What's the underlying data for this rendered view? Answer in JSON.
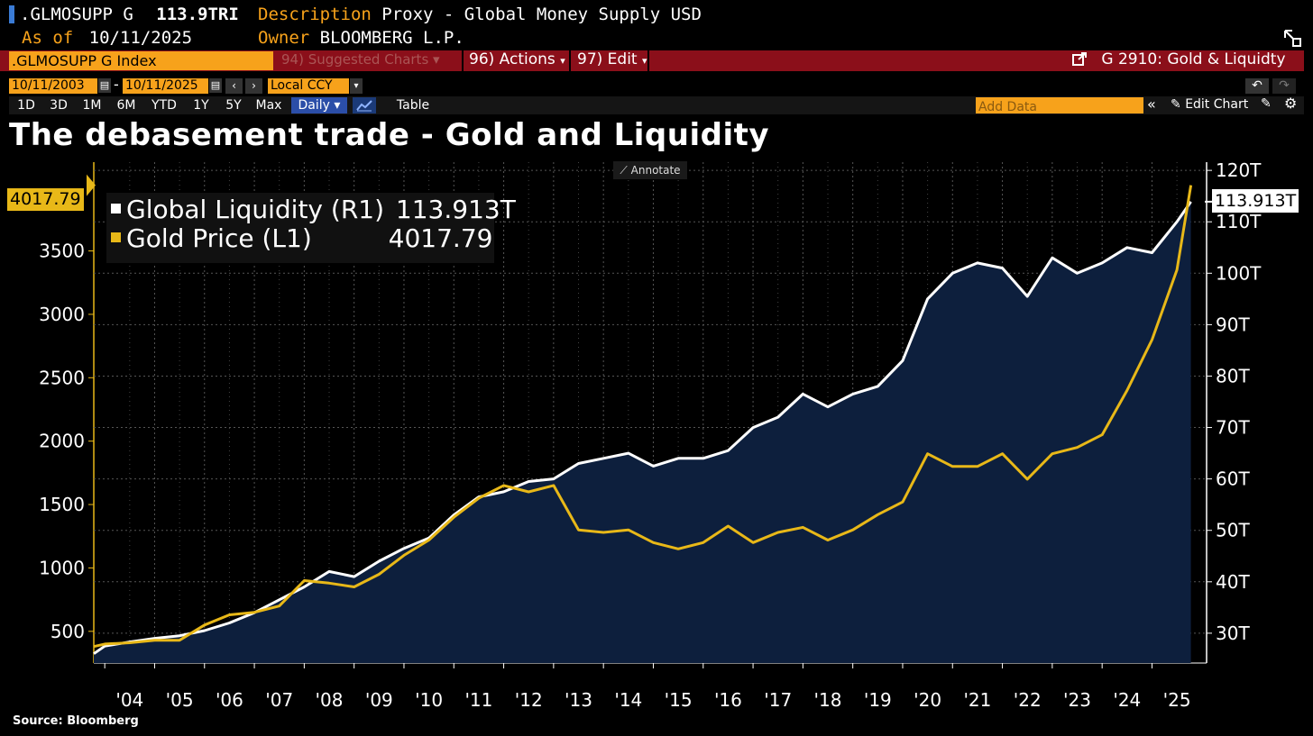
{
  "header": {
    "ticker": ".GLMOSUPP G",
    "value": "113.9TRI",
    "description_label": "Description",
    "description": "Proxy - Global Money Supply USD",
    "asof_label": "As of",
    "asof_date": "10/11/2025",
    "owner_label": "Owner",
    "owner": "BLOOMBERG L.P."
  },
  "toolbar": {
    "security_field": ".GLMOSUPP G Index",
    "suggested": "94) Suggested Charts",
    "actions": "96) Actions",
    "edit": "97) Edit",
    "chart_name": "G 2910: Gold & Liquidty",
    "start_date": "10/11/2003",
    "end_date": "10/11/2025",
    "date_sep": "-",
    "currency": "Local CCY",
    "periods": [
      "1D",
      "3D",
      "1M",
      "6M",
      "YTD",
      "1Y",
      "5Y",
      "Max"
    ],
    "frequency": "Daily",
    "table": "Table",
    "add_data_placeholder": "Add Data",
    "edit_chart": "Edit Chart",
    "annotate": "Annotate"
  },
  "chart_data": {
    "type": "line",
    "title": "The debasement trade - Gold and Liquidity",
    "source": "Source: Bloomberg",
    "x": [
      2003.78,
      2004.0,
      2004.5,
      2005.0,
      2005.5,
      2006.0,
      2006.5,
      2007.0,
      2007.5,
      2008.0,
      2008.5,
      2009.0,
      2009.5,
      2010.0,
      2010.5,
      2011.0,
      2011.5,
      2012.0,
      2012.5,
      2013.0,
      2013.5,
      2014.0,
      2014.5,
      2015.0,
      2015.5,
      2016.0,
      2016.5,
      2017.0,
      2017.5,
      2018.0,
      2018.5,
      2019.0,
      2019.5,
      2020.0,
      2020.5,
      2021.0,
      2021.5,
      2022.0,
      2022.5,
      2023.0,
      2023.5,
      2024.0,
      2024.5,
      2025.0,
      2025.5,
      2025.78
    ],
    "xticks": [
      "'04",
      "'05",
      "'06",
      "'07",
      "'08",
      "'09",
      "'10",
      "'11",
      "'12",
      "'13",
      "'14",
      "'15",
      "'16",
      "'17",
      "'18",
      "'19",
      "'20",
      "'21",
      "'22",
      "'23",
      "'24",
      "'25"
    ],
    "xlim": [
      2003.78,
      2025.95
    ],
    "series": [
      {
        "name": "Global Liquidity (R1)",
        "axis": "right",
        "color": "#ffffff",
        "last_label": "113.913T",
        "values": [
          26.0,
          27.5,
          28.3,
          29.0,
          29.5,
          30.5,
          32.0,
          34.0,
          36.5,
          39.0,
          42.0,
          41.0,
          44.0,
          46.5,
          48.5,
          53.0,
          56.5,
          57.5,
          59.5,
          60.0,
          63.0,
          64.0,
          65.0,
          62.5,
          64.0,
          64.0,
          65.5,
          70.0,
          72.0,
          76.5,
          74.0,
          76.5,
          78.0,
          83.0,
          95.0,
          100.0,
          102.0,
          101.0,
          95.5,
          103.0,
          100.0,
          102.0,
          105.0,
          104.0,
          110.0,
          113.913
        ]
      },
      {
        "name": "Gold Price (L1)",
        "axis": "left",
        "color": "#e8b818",
        "last_label": "4017.79",
        "values": [
          380,
          400,
          410,
          430,
          430,
          550,
          630,
          650,
          700,
          900,
          880,
          850,
          950,
          1100,
          1220,
          1400,
          1550,
          1650,
          1600,
          1650,
          1300,
          1280,
          1300,
          1200,
          1150,
          1200,
          1330,
          1200,
          1280,
          1320,
          1220,
          1300,
          1420,
          1520,
          1900,
          1800,
          1800,
          1900,
          1700,
          1900,
          1950,
          2050,
          2400,
          2800,
          3350,
          4017.79
        ]
      }
    ],
    "yleft": {
      "lim": [
        250,
        4200
      ],
      "ticks": [
        500,
        1000,
        1500,
        2000,
        2500,
        3000,
        3500
      ]
    },
    "yright": {
      "lim": [
        24.2,
        121.6
      ],
      "ticks": [
        "30T",
        "40T",
        "50T",
        "60T",
        "70T",
        "80T",
        "90T",
        "100T",
        "110T",
        "120T"
      ],
      "tick_values": [
        30,
        40,
        50,
        60,
        70,
        80,
        90,
        100,
        110,
        120
      ]
    },
    "legend_position": "top-left",
    "grid": true
  },
  "colors": {
    "orange": "#f7a21b",
    "red": "#8b0f1a",
    "area": "#0d1f3d",
    "blue": "#2b4ea8"
  },
  "icons": {
    "checkbox": "square-icon",
    "calendar": "calendar-icon",
    "undo": "undo-icon",
    "redo": "redo-icon",
    "settings": "gear-icon",
    "external": "external-link-icon",
    "chart": "line-chart-icon"
  }
}
